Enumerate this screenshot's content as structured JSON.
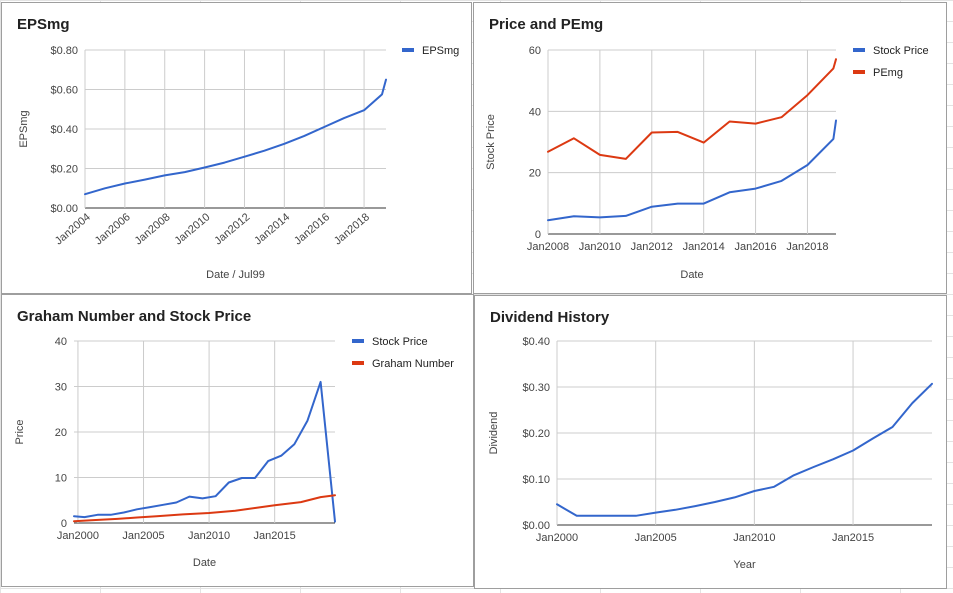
{
  "colors": {
    "blue": "#3366cc",
    "red": "#dc3912"
  },
  "charts": [
    {
      "key": "eps",
      "chart_data": {
        "type": "line",
        "title": "EPSmg",
        "xlabel": "Date / Jul99",
        "ylabel": "EPSmg",
        "xlim": [
          2004,
          2019.1
        ],
        "ylim": [
          0,
          0.8
        ],
        "yticks": [
          0,
          0.2,
          0.4,
          0.6,
          0.8
        ],
        "ytick_labels": [
          "$0.00",
          "$0.20",
          "$0.40",
          "$0.60",
          "$0.80"
        ],
        "xticks": [
          2004,
          2006,
          2008,
          2010,
          2012,
          2014,
          2016,
          2018
        ],
        "xtick_labels": [
          "Jan2004",
          "Jan2006",
          "Jan2008",
          "Jan2010",
          "Jan2012",
          "Jan2014",
          "Jan2016",
          "Jan2018"
        ],
        "xtick_rotate": true,
        "legend": "right",
        "series": [
          {
            "name": "EPSmg",
            "color": "#3366cc",
            "x": [
              2004,
              2005,
              2006,
              2007,
              2008,
              2009,
              2010,
              2011,
              2012,
              2013,
              2014,
              2015,
              2016,
              2017,
              2018,
              2018.9,
              2019.1
            ],
            "y": [
              0.07,
              0.1,
              0.124,
              0.144,
              0.165,
              0.182,
              0.205,
              0.23,
              0.26,
              0.29,
              0.325,
              0.365,
              0.41,
              0.455,
              0.495,
              0.575,
              0.65
            ]
          }
        ]
      }
    },
    {
      "key": "pe",
      "chart_data": {
        "type": "line",
        "title": "Price and PEmg",
        "xlabel": "Date",
        "ylabel": "Stock Price",
        "xlim": [
          2008,
          2019.1
        ],
        "ylim": [
          0,
          60
        ],
        "yticks": [
          0,
          20,
          40,
          60
        ],
        "ytick_labels": [
          "0",
          "20",
          "40",
          "60"
        ],
        "xticks": [
          2008,
          2010,
          2012,
          2014,
          2016,
          2018
        ],
        "xtick_labels": [
          "Jan2008",
          "Jan2010",
          "Jan2012",
          "Jan2014",
          "Jan2016",
          "Jan2018"
        ],
        "xtick_rotate": false,
        "legend": "right",
        "series": [
          {
            "name": "Stock Price",
            "color": "#3366cc",
            "x": [
              2008,
              2009,
              2010,
              2011,
              2012,
              2013,
              2014,
              2015,
              2016,
              2017,
              2018,
              2019,
              2019.1
            ],
            "y": [
              4.5,
              5.8,
              5.4,
              5.9,
              8.9,
              9.9,
              9.9,
              13.6,
              14.8,
              17.3,
              22.5,
              31,
              37
            ]
          },
          {
            "name": "PEmg",
            "color": "#dc3912",
            "x": [
              2008,
              2009,
              2010,
              2011,
              2012,
              2013,
              2014,
              2015,
              2016,
              2017,
              2018,
              2019,
              2019.1
            ],
            "y": [
              26.8,
              31.2,
              25.8,
              24.5,
              33.1,
              33.3,
              29.8,
              36.7,
              36,
              38.1,
              45.3,
              54,
              57
            ]
          }
        ]
      }
    },
    {
      "key": "graham",
      "chart_data": {
        "type": "line",
        "title": "Graham Number and Stock Price",
        "xlabel": "Date",
        "ylabel": "Price",
        "xlim": [
          1999.7,
          2019.6
        ],
        "ylim": [
          0,
          40
        ],
        "yticks": [
          0,
          10,
          20,
          30,
          40
        ],
        "ytick_labels": [
          "0",
          "10",
          "20",
          "30",
          "40"
        ],
        "xticks": [
          2000,
          2005,
          2010,
          2015
        ],
        "xtick_labels": [
          "Jan2000",
          "Jan2005",
          "Jan2010",
          "Jan2015"
        ],
        "xtick_rotate": false,
        "legend": "right",
        "series": [
          {
            "name": "Stock Price",
            "color": "#3366cc",
            "x": [
              1999.7,
              2000.5,
              2001.5,
              2002.5,
              2003.5,
              2004.5,
              2005.5,
              2006.5,
              2007.5,
              2008.5,
              2009.5,
              2010.5,
              2011.5,
              2012.5,
              2013.5,
              2014.5,
              2015.5,
              2016.5,
              2017.5,
              2018.5,
              2019.6
            ],
            "y": [
              1.5,
              1.3,
              1.8,
              1.8,
              2.3,
              3.0,
              3.5,
              4.0,
              4.5,
              5.8,
              5.4,
              5.9,
              8.9,
              9.9,
              9.9,
              13.6,
              14.8,
              17.3,
              22.5,
              31,
              0.3
            ]
          },
          {
            "name": "Graham Number",
            "color": "#dc3912",
            "x": [
              1999.7,
              2001,
              2003,
              2004.5,
              2006,
              2008,
              2010,
              2012,
              2013.5,
              2015,
              2017,
              2018.5,
              2019.6
            ],
            "y": [
              0.4,
              0.6,
              0.9,
              1.2,
              1.5,
              1.9,
              2.2,
              2.7,
              3.3,
              3.9,
              4.6,
              5.7,
              6.1
            ]
          }
        ]
      }
    },
    {
      "key": "div",
      "chart_data": {
        "type": "line",
        "title": "Dividend History",
        "xlabel": "Year",
        "ylabel": "Dividend",
        "xlim": [
          2000,
          2019
        ],
        "ylim": [
          0,
          0.4
        ],
        "yticks": [
          0,
          0.1,
          0.2,
          0.3,
          0.4
        ],
        "ytick_labels": [
          "$0.00",
          "$0.10",
          "$0.20",
          "$0.30",
          "$0.40"
        ],
        "xticks": [
          2000,
          2005,
          2010,
          2015
        ],
        "xtick_labels": [
          "Jan2000",
          "Jan2005",
          "Jan2010",
          "Jan2015"
        ],
        "xtick_rotate": false,
        "legend": "none",
        "series": [
          {
            "name": "",
            "color": "#3366cc",
            "x": [
              2000,
              2001,
              2002,
              2003,
              2004,
              2005,
              2006,
              2007,
              2008,
              2009,
              2010,
              2011,
              2012,
              2013,
              2014,
              2015,
              2016,
              2017,
              2018,
              2019
            ],
            "y": [
              0.045,
              0.02,
              0.02,
              0.02,
              0.02,
              0.027,
              0.033,
              0.041,
              0.05,
              0.06,
              0.074,
              0.083,
              0.108,
              0.126,
              0.143,
              0.162,
              0.188,
              0.213,
              0.265,
              0.307
            ]
          }
        ]
      }
    }
  ]
}
